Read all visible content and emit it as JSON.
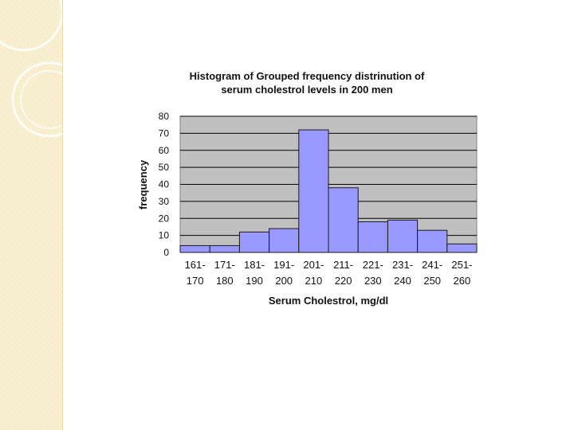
{
  "chart_data": {
    "type": "bar",
    "title_line1": "Histogram of Grouped frequency distrinution of",
    "title_line2": "serum cholestrol levels in 200 men",
    "xlabel": "Serum Cholestrol, mg/dl",
    "ylabel": "frequency",
    "categories": [
      [
        "161-",
        "170"
      ],
      [
        "171-",
        "180"
      ],
      [
        "181-",
        "190"
      ],
      [
        "191-",
        "200"
      ],
      [
        "201-",
        "210"
      ],
      [
        "211-",
        "220"
      ],
      [
        "221-",
        "230"
      ],
      [
        "231-",
        "240"
      ],
      [
        "241-",
        "250"
      ],
      [
        "251-",
        "260"
      ]
    ],
    "values": [
      4,
      4,
      12,
      14,
      72,
      38,
      18,
      19,
      13,
      5
    ],
    "yticks": [
      0,
      10,
      20,
      30,
      40,
      50,
      60,
      70,
      80
    ],
    "ylim": [
      0,
      80
    ],
    "grid": true,
    "legend": "none",
    "colors": {
      "bar": "#9999ff",
      "bar_edge": "#1a1a1a",
      "plot_bg": "#c0c0c0",
      "side_panel": "#f6ebc4"
    }
  }
}
